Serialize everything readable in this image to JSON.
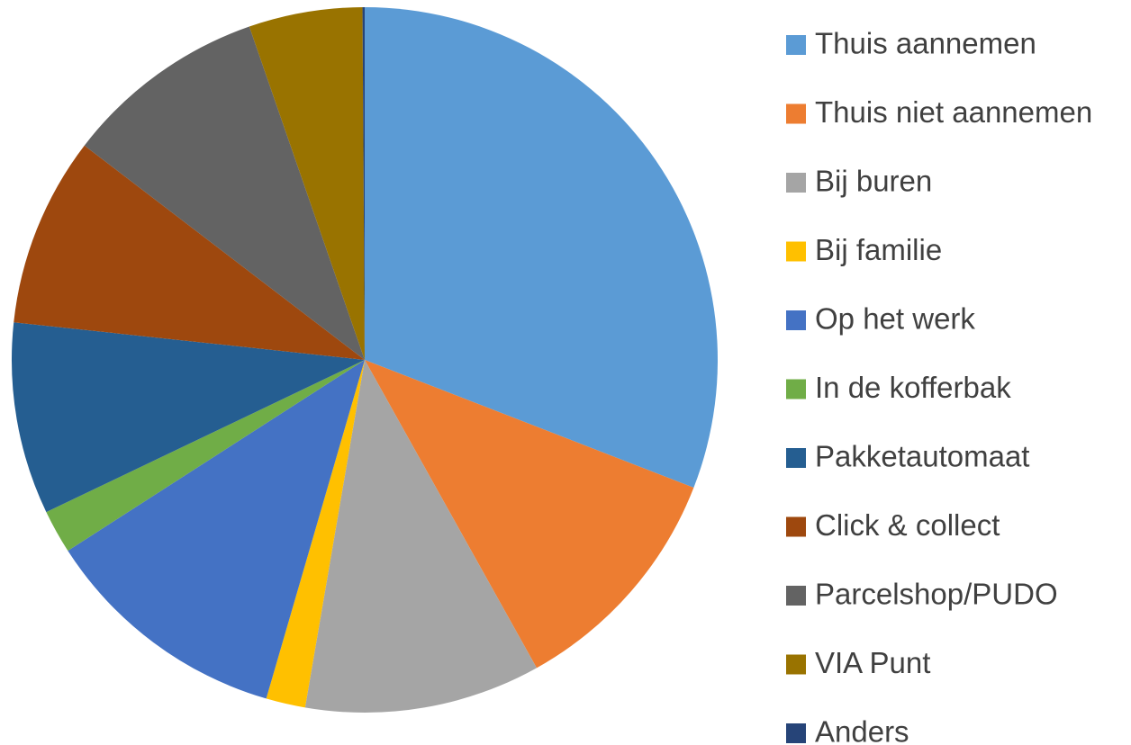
{
  "chart_data": {
    "type": "pie",
    "categories": [
      "Thuis aannemen",
      "Thuis niet aannemen",
      "Bij buren",
      "Bij familie",
      "Op het werk",
      "In de kofferbak",
      "Pakketautomaat",
      "Click & collect",
      "Parcelshop/PUDO",
      "VIA Punt",
      "Anders"
    ],
    "values": [
      30.9,
      11.0,
      10.8,
      1.8,
      11.4,
      2.0,
      8.8,
      8.7,
      9.3,
      5.2,
      0.1
    ],
    "colors": [
      "#5b9bd5",
      "#ed7d31",
      "#a5a5a5",
      "#ffc000",
      "#4472c4",
      "#70ad47",
      "#255e91",
      "#9e480e",
      "#636363",
      "#997300",
      "#264478"
    ],
    "legend": "right"
  }
}
